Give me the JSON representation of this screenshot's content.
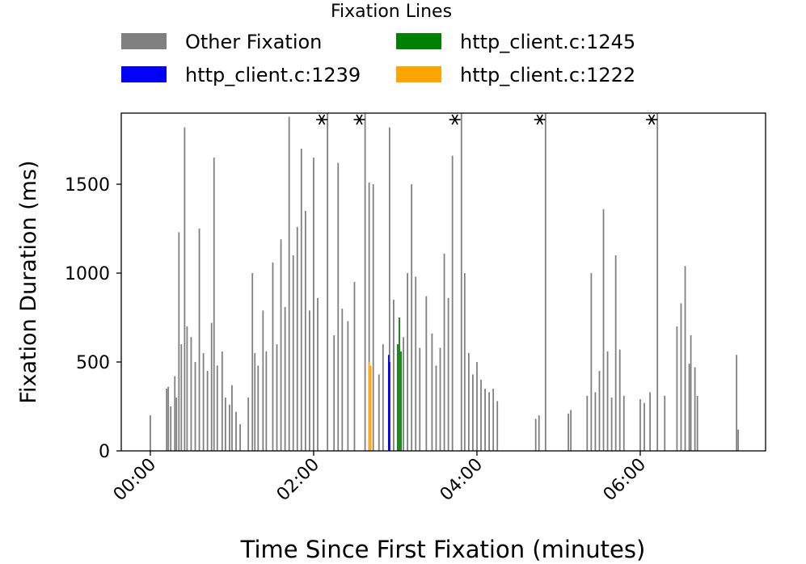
{
  "chart_data": {
    "type": "bar",
    "legend_title": "Fixation Lines",
    "xlabel": "Time Since First Fixation (minutes)",
    "ylabel": "Fixation Duration (ms)",
    "xlim": [
      -0.356,
      7.535
    ],
    "ylim": [
      0,
      1900
    ],
    "xticks": [
      {
        "value": 0,
        "label": "00:00"
      },
      {
        "value": 2,
        "label": "02:00"
      },
      {
        "value": 4,
        "label": "04:00"
      },
      {
        "value": 6,
        "label": "06:00"
      }
    ],
    "yticks": [
      0,
      500,
      1000,
      1500
    ],
    "clipped_x": [
      2.1,
      2.56,
      3.73,
      4.77,
      6.14
    ],
    "series": [
      {
        "name": "Other Fixation",
        "color": "#808080",
        "x": [
          0.0,
          0.2,
          0.22,
          0.25,
          0.3,
          0.32,
          0.35,
          0.38,
          0.42,
          0.45,
          0.5,
          0.55,
          0.6,
          0.65,
          0.7,
          0.75,
          0.78,
          0.82,
          0.88,
          0.92,
          0.97,
          1.0,
          1.05,
          1.1,
          1.2,
          1.25,
          1.28,
          1.32,
          1.38,
          1.42,
          1.5,
          1.55,
          1.6,
          1.65,
          1.7,
          1.75,
          1.8,
          1.85,
          1.9,
          1.95,
          2.0,
          2.05,
          2.17,
          2.25,
          2.3,
          2.35,
          2.42,
          2.5,
          2.63,
          2.68,
          2.73,
          2.8,
          2.85,
          2.93,
          2.98,
          3.1,
          3.15,
          3.2,
          3.25,
          3.3,
          3.38,
          3.45,
          3.5,
          3.55,
          3.6,
          3.65,
          3.7,
          3.81,
          3.85,
          3.9,
          3.95,
          4.0,
          4.05,
          4.1,
          4.15,
          4.2,
          4.25,
          4.72,
          4.76,
          4.84,
          5.12,
          5.15,
          5.35,
          5.4,
          5.45,
          5.5,
          5.55,
          5.6,
          5.65,
          5.7,
          5.75,
          5.8,
          6.0,
          6.05,
          6.12,
          6.21,
          6.3,
          6.45,
          6.5,
          6.55,
          6.6,
          6.62,
          6.67,
          6.7,
          7.18,
          7.2
        ],
        "values": [
          200,
          350,
          360,
          250,
          420,
          300,
          1230,
          600,
          1820,
          700,
          640,
          500,
          1250,
          550,
          450,
          720,
          1650,
          480,
          560,
          300,
          260,
          370,
          220,
          150,
          300,
          1000,
          550,
          480,
          790,
          560,
          1060,
          600,
          1190,
          810,
          1880,
          1100,
          1260,
          1700,
          1350,
          790,
          1650,
          860,
          2100,
          650,
          1620,
          800,
          730,
          950,
          2050,
          1510,
          1500,
          430,
          600,
          1820,
          850,
          640,
          1000,
          1500,
          980,
          580,
          870,
          660,
          480,
          580,
          1110,
          860,
          1660,
          2000,
          1000,
          550,
          430,
          500,
          400,
          350,
          330,
          350,
          280,
          180,
          200,
          2000,
          210,
          230,
          310,
          1000,
          330,
          450,
          1360,
          560,
          300,
          1100,
          570,
          310,
          290,
          270,
          330,
          2000,
          310,
          700,
          830,
          1040,
          490,
          650,
          470,
          310,
          540,
          120
        ]
      },
      {
        "name": "http_client.c:1239",
        "color": "#0000ff",
        "x": [
          2.92,
          2.93
        ],
        "values": [
          540,
          500
        ]
      },
      {
        "name": "http_client.c:1245",
        "color": "#008000",
        "x": [
          3.03,
          3.05,
          3.07
        ],
        "values": [
          600,
          750,
          560
        ]
      },
      {
        "name": "http_client.c:1222",
        "color": "#ffa500",
        "x": [
          2.68,
          2.7
        ],
        "values": [
          500,
          480
        ]
      }
    ]
  }
}
